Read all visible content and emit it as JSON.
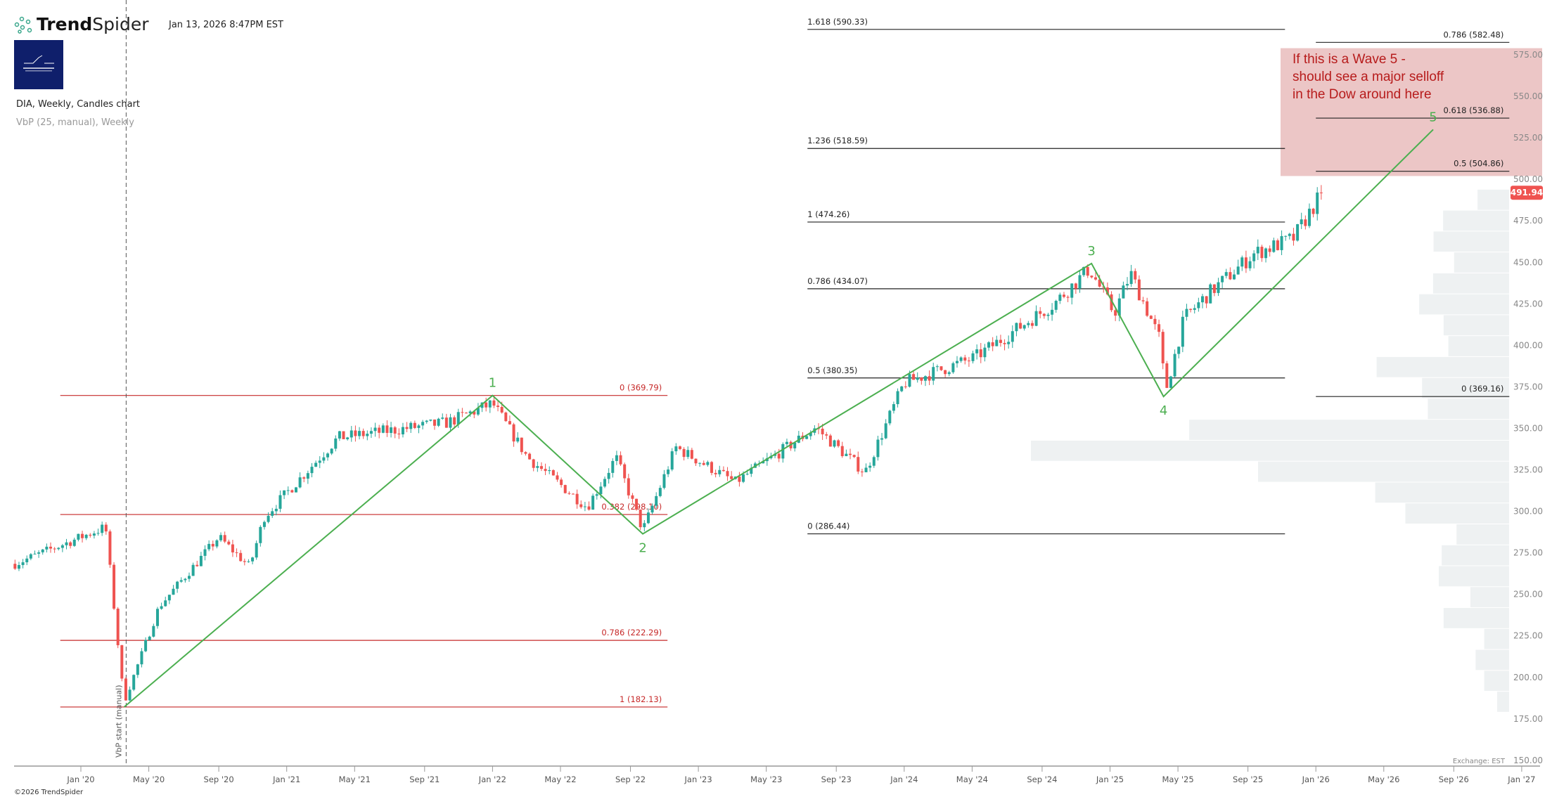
{
  "header": {
    "brand_bold": "Trend",
    "brand_light": "Spider",
    "timestamp": "Jan 13, 2026 8:47PM EST",
    "symbol_line": "DIA, Weekly, Candles chart",
    "indicator_line": "VbP (25, manual), Weekly",
    "copyright": "©2026 TrendSpider",
    "exchange_label": "Exchange: EST"
  },
  "annotation": {
    "text": "If this is a Wave 5 -\nshould see a major selloff\nin the Dow around here",
    "zone_price_top": 579,
    "zone_price_bottom": 502
  },
  "vbp_start_label": "VbP start (manual)",
  "last_price": "491.94",
  "colors": {
    "up": "#26a69a",
    "down": "#ef5350",
    "wave": "#4caf50",
    "fib_red": "#c62828",
    "fib_black": "#222222",
    "zone": "#ecc6c6",
    "vbp": "#eef1f2",
    "price_tag": "#ef5350"
  },
  "chart_data": {
    "type": "candlestick",
    "title": "DIA, Weekly, Candles chart",
    "ylim": [
      150,
      590
    ],
    "y_ticks": [
      "575.00",
      "550.00",
      "525.00",
      "500.00",
      "475.00",
      "450.00",
      "425.00",
      "400.00",
      "375.00",
      "350.00",
      "325.00",
      "300.00",
      "275.00",
      "250.00",
      "225.00",
      "200.00",
      "175.00",
      "150.00"
    ],
    "x_ticks": [
      {
        "label": "Jan '20",
        "t": 2020.0
      },
      {
        "label": "May '20",
        "t": 2020.33
      },
      {
        "label": "Sep '20",
        "t": 2020.67
      },
      {
        "label": "Jan '21",
        "t": 2021.0
      },
      {
        "label": "May '21",
        "t": 2021.33
      },
      {
        "label": "Sep '21",
        "t": 2021.67
      },
      {
        "label": "Jan '22",
        "t": 2022.0
      },
      {
        "label": "May '22",
        "t": 2022.33
      },
      {
        "label": "Sep '22",
        "t": 2022.67
      },
      {
        "label": "Jan '23",
        "t": 2023.0
      },
      {
        "label": "May '23",
        "t": 2023.33
      },
      {
        "label": "Sep '23",
        "t": 2023.67
      },
      {
        "label": "Jan '24",
        "t": 2024.0
      },
      {
        "label": "May '24",
        "t": 2024.33
      },
      {
        "label": "Sep '24",
        "t": 2024.67
      },
      {
        "label": "Jan '25",
        "t": 2025.0
      },
      {
        "label": "May '25",
        "t": 2025.33
      },
      {
        "label": "Sep '25",
        "t": 2025.67
      },
      {
        "label": "Jan '26",
        "t": 2026.0
      },
      {
        "label": "May '26",
        "t": 2026.33
      },
      {
        "label": "Sep '26",
        "t": 2026.67
      },
      {
        "label": "Jan '27",
        "t": 2027.0
      }
    ],
    "price_path": [
      [
        2019.68,
        268.4
      ],
      [
        2020.12,
        290.5
      ],
      [
        2020.21,
        185.0
      ],
      [
        2020.38,
        242.6
      ],
      [
        2020.67,
        284.5
      ],
      [
        2020.82,
        266.6
      ],
      [
        2020.89,
        296.5
      ],
      [
        2021.25,
        344.4
      ],
      [
        2021.78,
        353.4
      ],
      [
        2022.0,
        365.0
      ],
      [
        2022.17,
        332.5
      ],
      [
        2022.46,
        302.5
      ],
      [
        2022.6,
        332.5
      ],
      [
        2022.73,
        288.5
      ],
      [
        2022.89,
        338.5
      ],
      [
        2023.18,
        317.5
      ],
      [
        2023.57,
        350.4
      ],
      [
        2023.81,
        323.5
      ],
      [
        2024.0,
        377.4
      ],
      [
        2024.34,
        392.4
      ],
      [
        2024.73,
        425.3
      ],
      [
        2024.9,
        446.3
      ],
      [
        2025.02,
        419.3
      ],
      [
        2025.1,
        443.3
      ],
      [
        2025.24,
        404.3
      ],
      [
        2025.27,
        372.4
      ],
      [
        2025.36,
        416.3
      ],
      [
        2025.48,
        431.3
      ],
      [
        2025.7,
        455.3
      ],
      [
        2025.89,
        464.2
      ],
      [
        2026.03,
        491.94
      ]
    ],
    "waves": [
      {
        "label": "",
        "t": 2020.21,
        "price": 182.13
      },
      {
        "label": "1",
        "t": 2022.0,
        "price": 369.79
      },
      {
        "label": "2",
        "t": 2022.73,
        "price": 286.44
      },
      {
        "label": "3",
        "t": 2024.91,
        "price": 449.3
      },
      {
        "label": "4",
        "t": 2025.26,
        "price": 369.16
      },
      {
        "label": "5",
        "t": 2026.57,
        "price": 530.0
      }
    ],
    "fib_sets": [
      {
        "color": "red",
        "t_start": 2019.9,
        "t_end": 2022.85,
        "label_align": "right",
        "levels": [
          {
            "label": "0 (369.79)",
            "price": 369.79
          },
          {
            "label": "0.382 (298.10)",
            "price": 298.1
          },
          {
            "label": "0.786 (222.29)",
            "price": 222.29
          },
          {
            "label": "1 (182.13)",
            "price": 182.13
          }
        ]
      },
      {
        "color": "black",
        "t_start": 2023.53,
        "t_end": 2025.85,
        "label_align": "left",
        "levels": [
          {
            "label": "0 (286.44)",
            "price": 286.44
          },
          {
            "label": "0.5 (380.35)",
            "price": 380.35
          },
          {
            "label": "0.786 (434.07)",
            "price": 434.07
          },
          {
            "label": "1 (474.26)",
            "price": 474.26
          },
          {
            "label": "1.236 (518.59)",
            "price": 518.59
          },
          {
            "label": "1.618 (590.33)",
            "price": 590.33
          }
        ]
      },
      {
        "color": "black",
        "t_start": 2026.0,
        "t_end": 2026.94,
        "label_align": "right",
        "levels": [
          {
            "label": "0 (369.16)",
            "price": 369.16
          },
          {
            "label": "0.5 (504.86)",
            "price": 504.86
          },
          {
            "label": "0.618 (536.88)",
            "price": 536.88
          },
          {
            "label": "0.786 (582.48)",
            "price": 582.48
          }
        ]
      }
    ],
    "volume_profile": {
      "bins": 25,
      "price_low": 179,
      "price_high": 494,
      "relative_volume_top_to_bottom": [
        6.6,
        13.8,
        15.8,
        11.5,
        15.9,
        18.8,
        13.7,
        12.7,
        27.7,
        18.2,
        17.0,
        66.9,
        100,
        52.5,
        28.0,
        21.7,
        11.0,
        14.1,
        14.7,
        8.1,
        13.7,
        5.2,
        7.0,
        5.2,
        2.5
      ]
    },
    "vbp_start_t": 2020.22
  }
}
